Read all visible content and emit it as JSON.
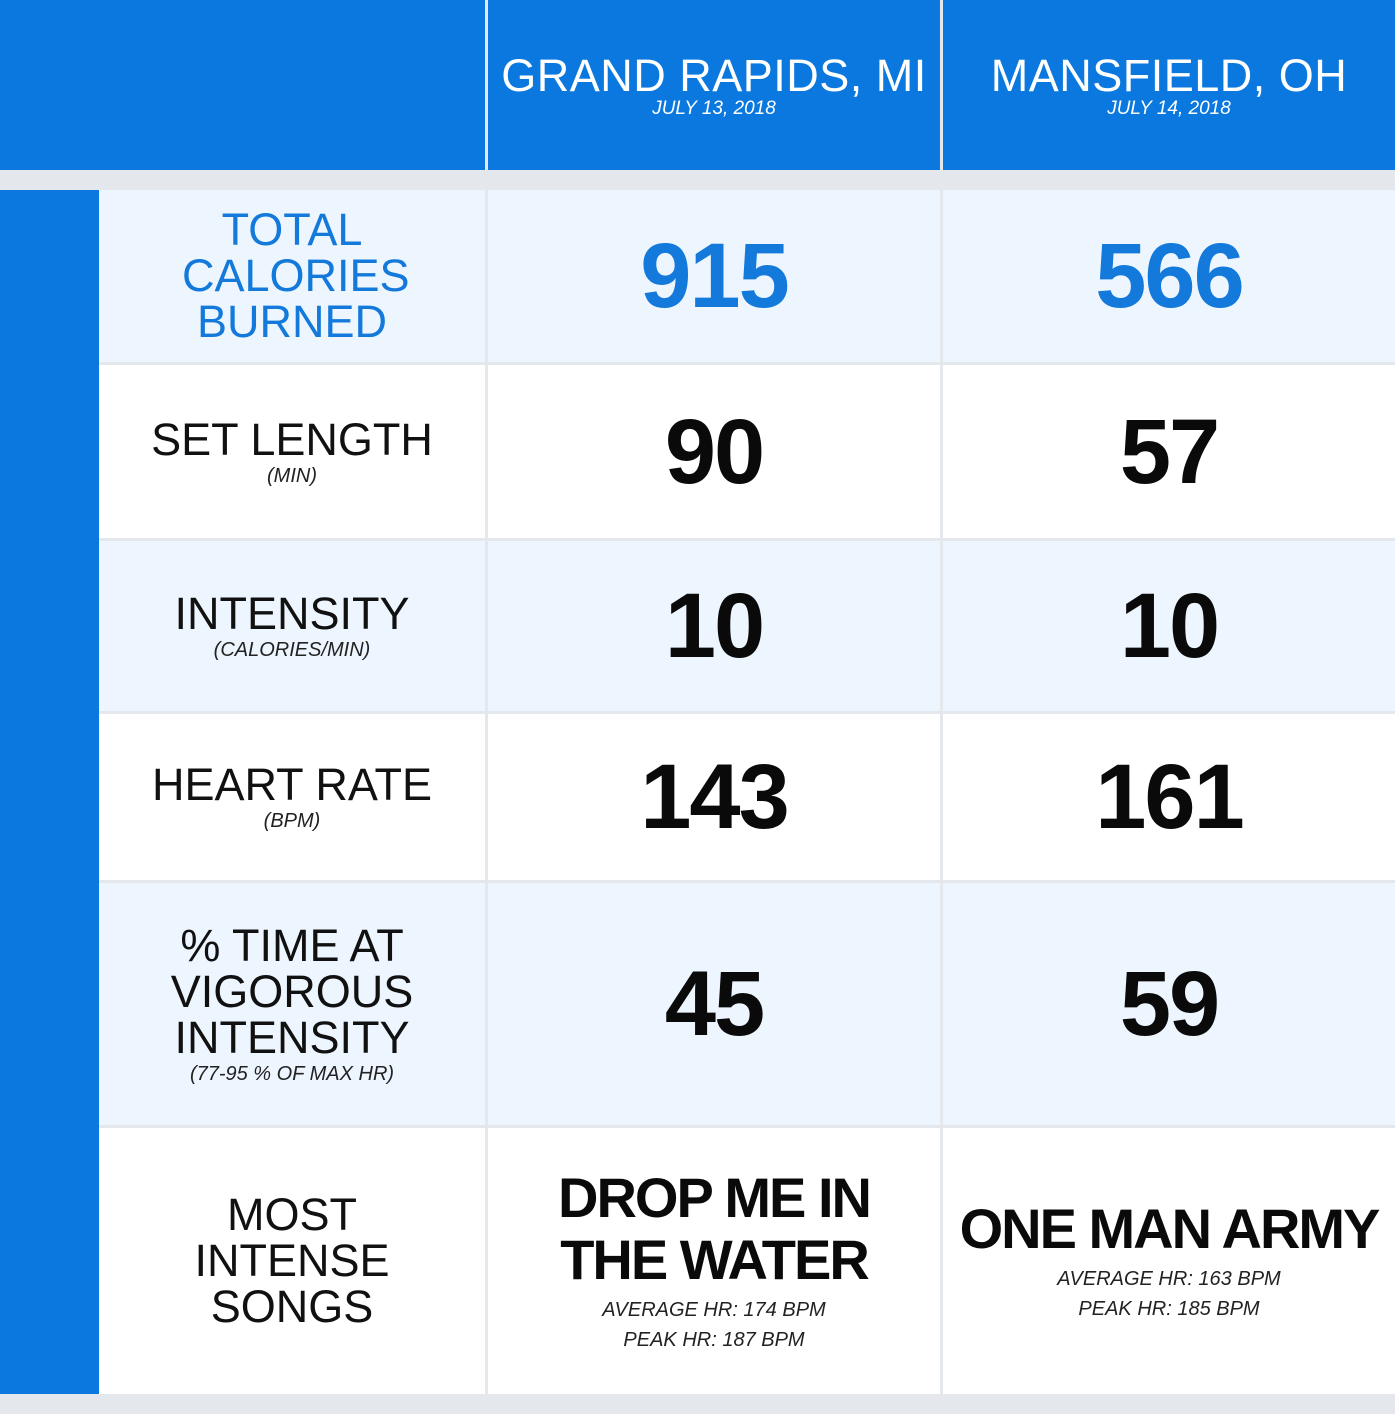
{
  "columns": [
    {
      "city": "GRAND RAPIDS, MI",
      "date": "JULY 13, 2018"
    },
    {
      "city": "MANSFIELD, OH",
      "date": "JULY 14, 2018"
    }
  ],
  "rows": [
    {
      "label": "TOTAL CALORIES BURNED",
      "unit": "",
      "values": [
        "915",
        "566"
      ]
    },
    {
      "label": "SET LENGTH",
      "unit": "(MIN)",
      "values": [
        "90",
        "57"
      ]
    },
    {
      "label": "INTENSITY",
      "unit": "(CALORIES/MIN)",
      "values": [
        "10",
        "10"
      ]
    },
    {
      "label": "HEART RATE",
      "unit": "(BPM)",
      "values": [
        "143",
        "161"
      ]
    },
    {
      "label": "% TIME AT VIGOROUS INTENSITY",
      "unit": "(77-95 % OF MAX HR)",
      "values": [
        "45",
        "59"
      ]
    }
  ],
  "songs": {
    "label": "MOST INTENSE SONGS",
    "items": [
      {
        "title": "DROP ME IN THE WATER",
        "average": "AVERAGE HR: 174 BPM",
        "peak": "PEAK HR: 187 BPM"
      },
      {
        "title": "ONE MAN ARMY",
        "average": "AVERAGE HR: 163 BPM",
        "peak": "PEAK HR: 185 BPM"
      }
    ]
  },
  "colors": {
    "accent_blue": "#0a78de",
    "highlight_text": "#1379da",
    "alt_row": "#edf6ff",
    "grid": "#e4e8ec"
  }
}
